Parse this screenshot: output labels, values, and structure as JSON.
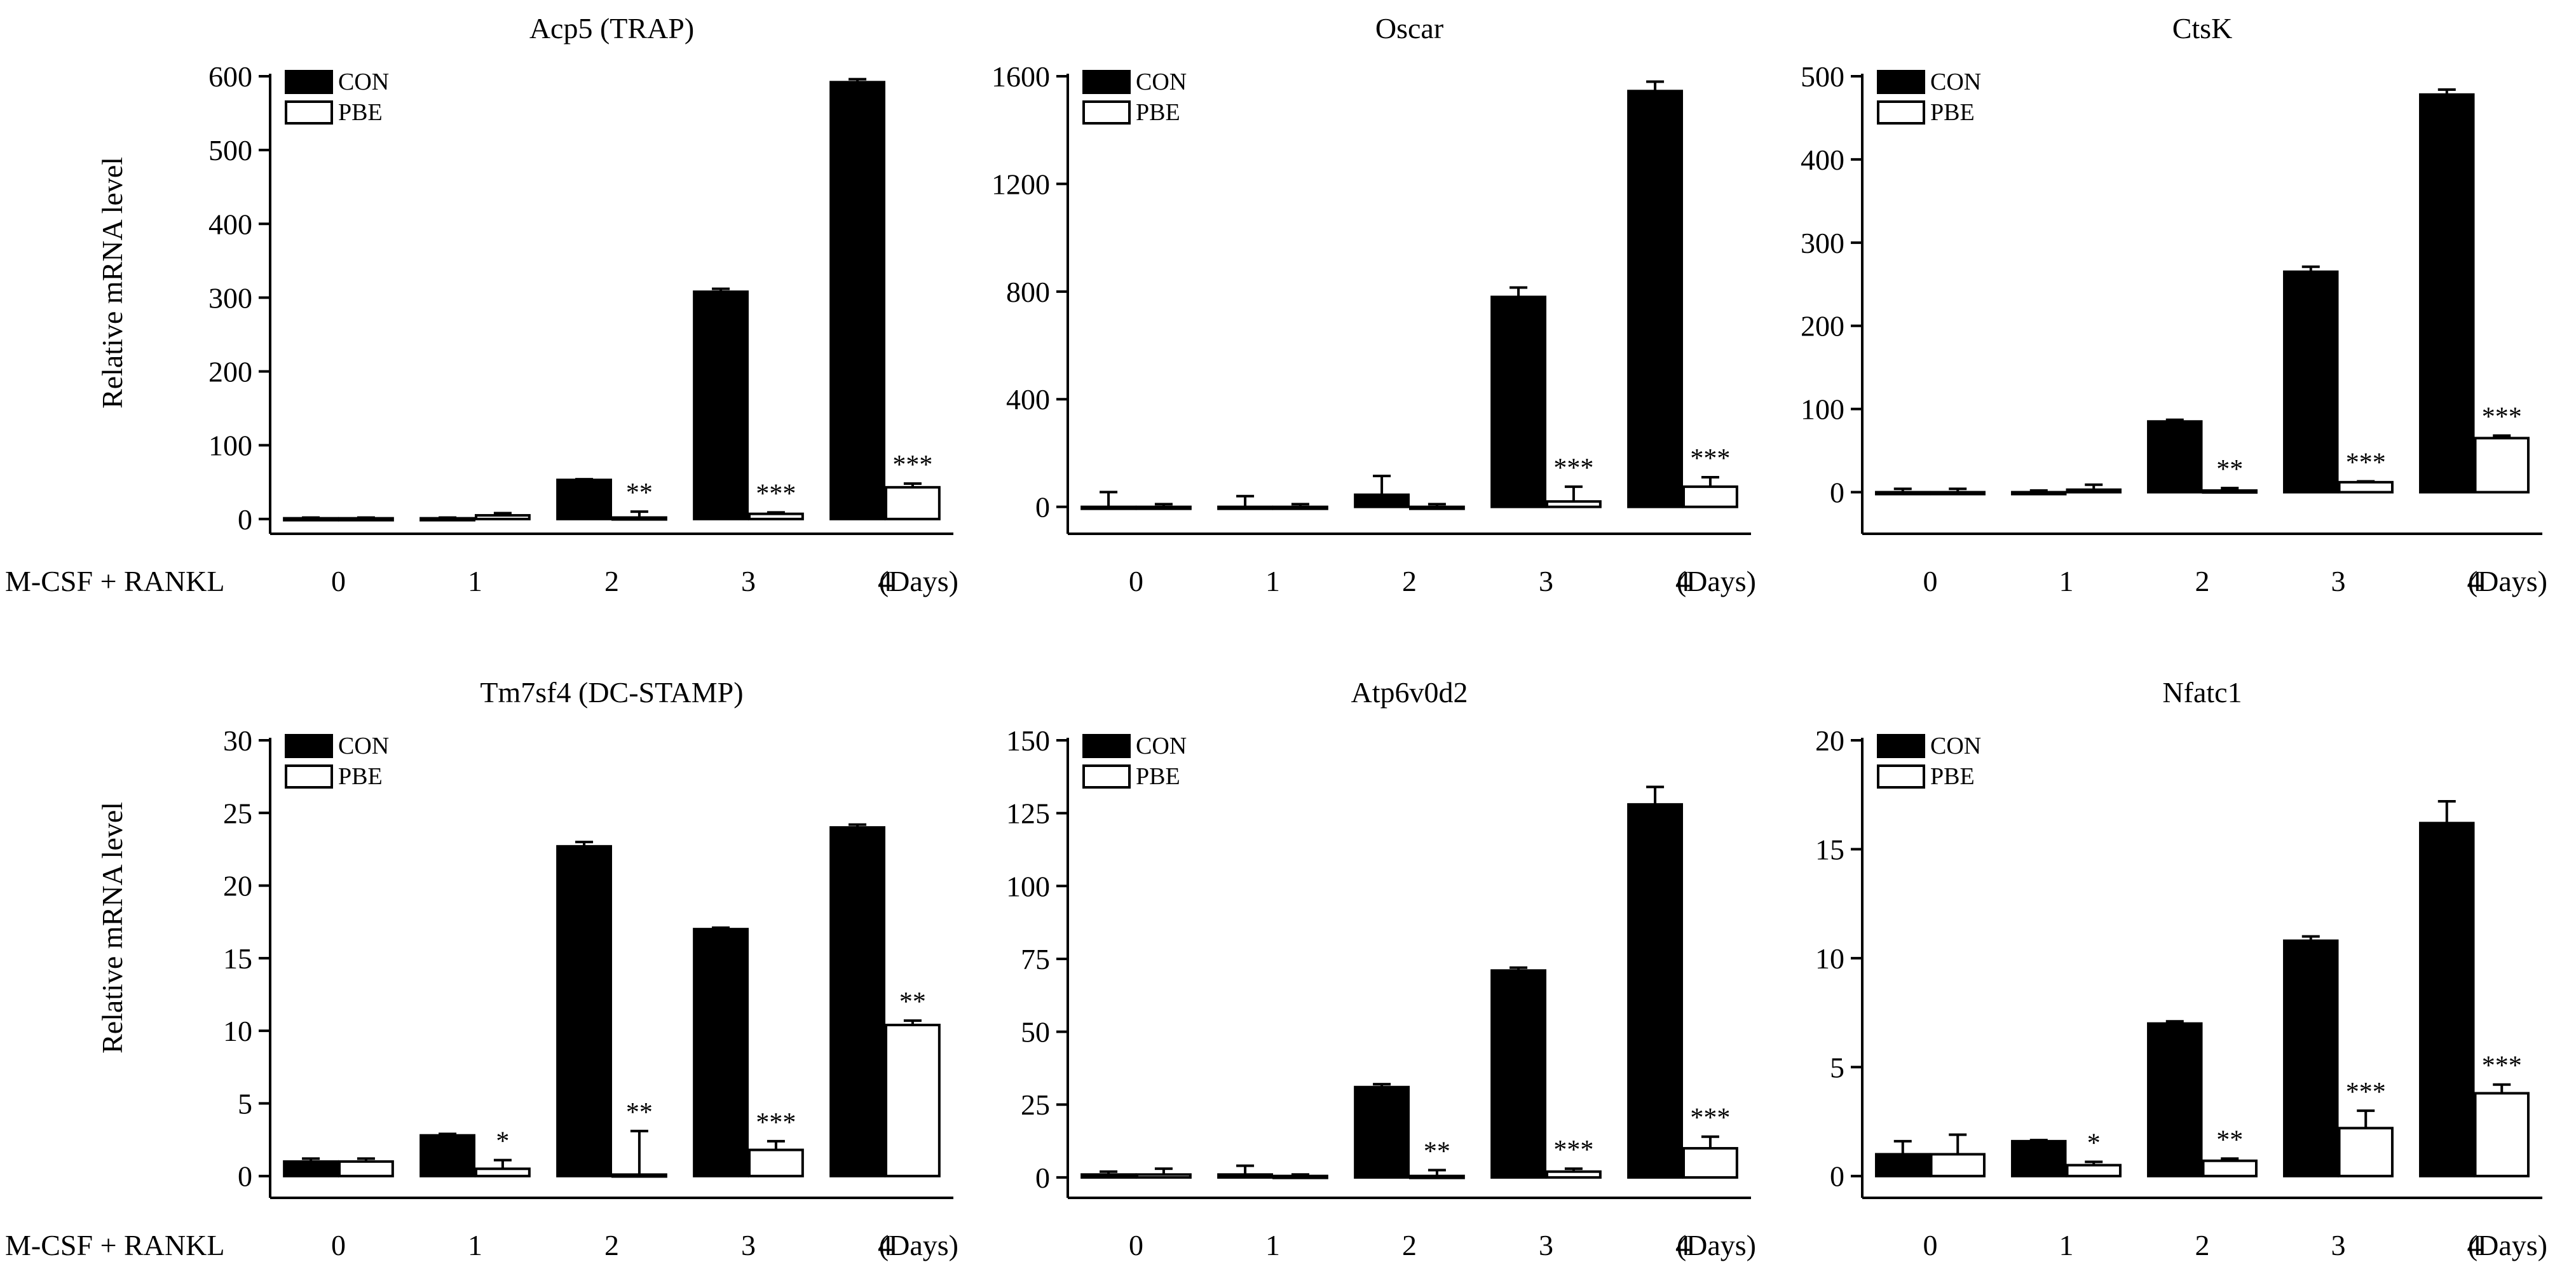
{
  "figure": {
    "row_label": "M-CSF + RANKL",
    "x_unit_label": "(Days)",
    "y_axis_label": "Relative mRNA level"
  },
  "colors": {
    "con": "#000000",
    "pbe": "#ffffff",
    "axis": "#000000"
  },
  "chart_data": [
    {
      "type": "bar",
      "title": "Acp5 (TRAP)",
      "categories": [
        "0",
        "1",
        "2",
        "3",
        "4"
      ],
      "xlabel": "(Days)",
      "ylabel": "Relative mRNA level",
      "ylim": [
        -20,
        600
      ],
      "yticks": [
        0,
        100,
        200,
        300,
        400,
        500,
        600
      ],
      "legend": "top-left",
      "series": [
        {
          "name": "CON",
          "values": [
            1,
            1,
            53,
            308,
            592
          ],
          "errors": [
            1,
            1,
            1,
            4,
            4
          ]
        },
        {
          "name": "PBE",
          "values": [
            1,
            5,
            2,
            7,
            43
          ],
          "errors": [
            1,
            3,
            8,
            2,
            5
          ]
        }
      ],
      "significance": [
        "",
        "",
        "**",
        "***",
        "***"
      ]
    },
    {
      "type": "bar",
      "title": "Oscar",
      "categories": [
        "0",
        "1",
        "2",
        "3",
        "4"
      ],
      "xlabel": "(Days)",
      "ylabel": "",
      "ylim": [
        -100,
        1600
      ],
      "yticks": [
        0,
        400,
        800,
        1200,
        1600
      ],
      "legend": "top-left",
      "series": [
        {
          "name": "CON",
          "values": [
            0,
            0,
            45,
            780,
            1545
          ],
          "errors": [
            55,
            40,
            70,
            35,
            35
          ]
        },
        {
          "name": "PBE",
          "values": [
            0,
            0,
            0,
            20,
            75
          ],
          "errors": [
            10,
            10,
            10,
            55,
            35
          ]
        }
      ],
      "significance": [
        "",
        "",
        "",
        "***",
        "***"
      ]
    },
    {
      "type": "bar",
      "title": "CtsK",
      "categories": [
        "0",
        "1",
        "2",
        "3",
        "4"
      ],
      "xlabel": "(Days)",
      "ylabel": "",
      "ylim": [
        -50,
        500
      ],
      "yticks": [
        0,
        100,
        200,
        300,
        400,
        500
      ],
      "legend": "top-left",
      "series": [
        {
          "name": "CON",
          "values": [
            0,
            0,
            85,
            265,
            478
          ],
          "errors": [
            4,
            2,
            2,
            6,
            6
          ]
        },
        {
          "name": "PBE",
          "values": [
            0,
            3,
            2,
            12,
            65
          ],
          "errors": [
            4,
            6,
            3,
            1,
            3
          ]
        }
      ],
      "significance": [
        "",
        "",
        "**",
        "***",
        "***"
      ]
    },
    {
      "type": "bar",
      "title": "Tm7sf4 (DC-STAMP)",
      "categories": [
        "0",
        "1",
        "2",
        "3",
        "4"
      ],
      "xlabel": "(Days)",
      "ylabel": "Relative mRNA level",
      "ylim": [
        -1.5,
        30
      ],
      "yticks": [
        0,
        5,
        10,
        15,
        20,
        25,
        30
      ],
      "legend": "top-left",
      "series": [
        {
          "name": "CON",
          "values": [
            1.0,
            2.8,
            22.7,
            17.0,
            24.0
          ],
          "errors": [
            0.2,
            0.1,
            0.3,
            0.1,
            0.2
          ]
        },
        {
          "name": "PBE",
          "values": [
            1.0,
            0.5,
            0.1,
            1.8,
            10.4
          ],
          "errors": [
            0.2,
            0.6,
            3.0,
            0.6,
            0.3
          ]
        }
      ],
      "significance": [
        "",
        "*",
        "**",
        "***",
        "**"
      ]
    },
    {
      "type": "bar",
      "title": "Atp6v0d2",
      "categories": [
        "0",
        "1",
        "2",
        "3",
        "4"
      ],
      "xlabel": "(Days)",
      "ylabel": "",
      "ylim": [
        -7,
        150
      ],
      "yticks": [
        0,
        25,
        50,
        75,
        100,
        125,
        150
      ],
      "legend": "top-left",
      "series": [
        {
          "name": "CON",
          "values": [
            1,
            1,
            31,
            71,
            128
          ],
          "errors": [
            1,
            3,
            1,
            1,
            6
          ]
        },
        {
          "name": "PBE",
          "values": [
            1,
            0.5,
            0.5,
            2,
            10
          ],
          "errors": [
            2,
            0.5,
            2,
            1,
            4
          ]
        }
      ],
      "significance": [
        "",
        "",
        "**",
        "***",
        "***"
      ]
    },
    {
      "type": "bar",
      "title": "Nfatc1",
      "categories": [
        "0",
        "1",
        "2",
        "3",
        "4"
      ],
      "xlabel": "(Days)",
      "ylabel": "",
      "ylim": [
        -1,
        20
      ],
      "yticks": [
        0,
        5,
        10,
        15,
        20
      ],
      "legend": "top-left",
      "series": [
        {
          "name": "CON",
          "values": [
            1.0,
            1.6,
            7.0,
            10.8,
            16.2
          ],
          "errors": [
            0.6,
            0.05,
            0.1,
            0.2,
            1.0
          ]
        },
        {
          "name": "PBE",
          "values": [
            1.0,
            0.5,
            0.7,
            2.2,
            3.8
          ],
          "errors": [
            0.9,
            0.15,
            0.1,
            0.8,
            0.4
          ]
        }
      ],
      "significance": [
        "",
        "*",
        "**",
        "***",
        "***"
      ]
    }
  ]
}
